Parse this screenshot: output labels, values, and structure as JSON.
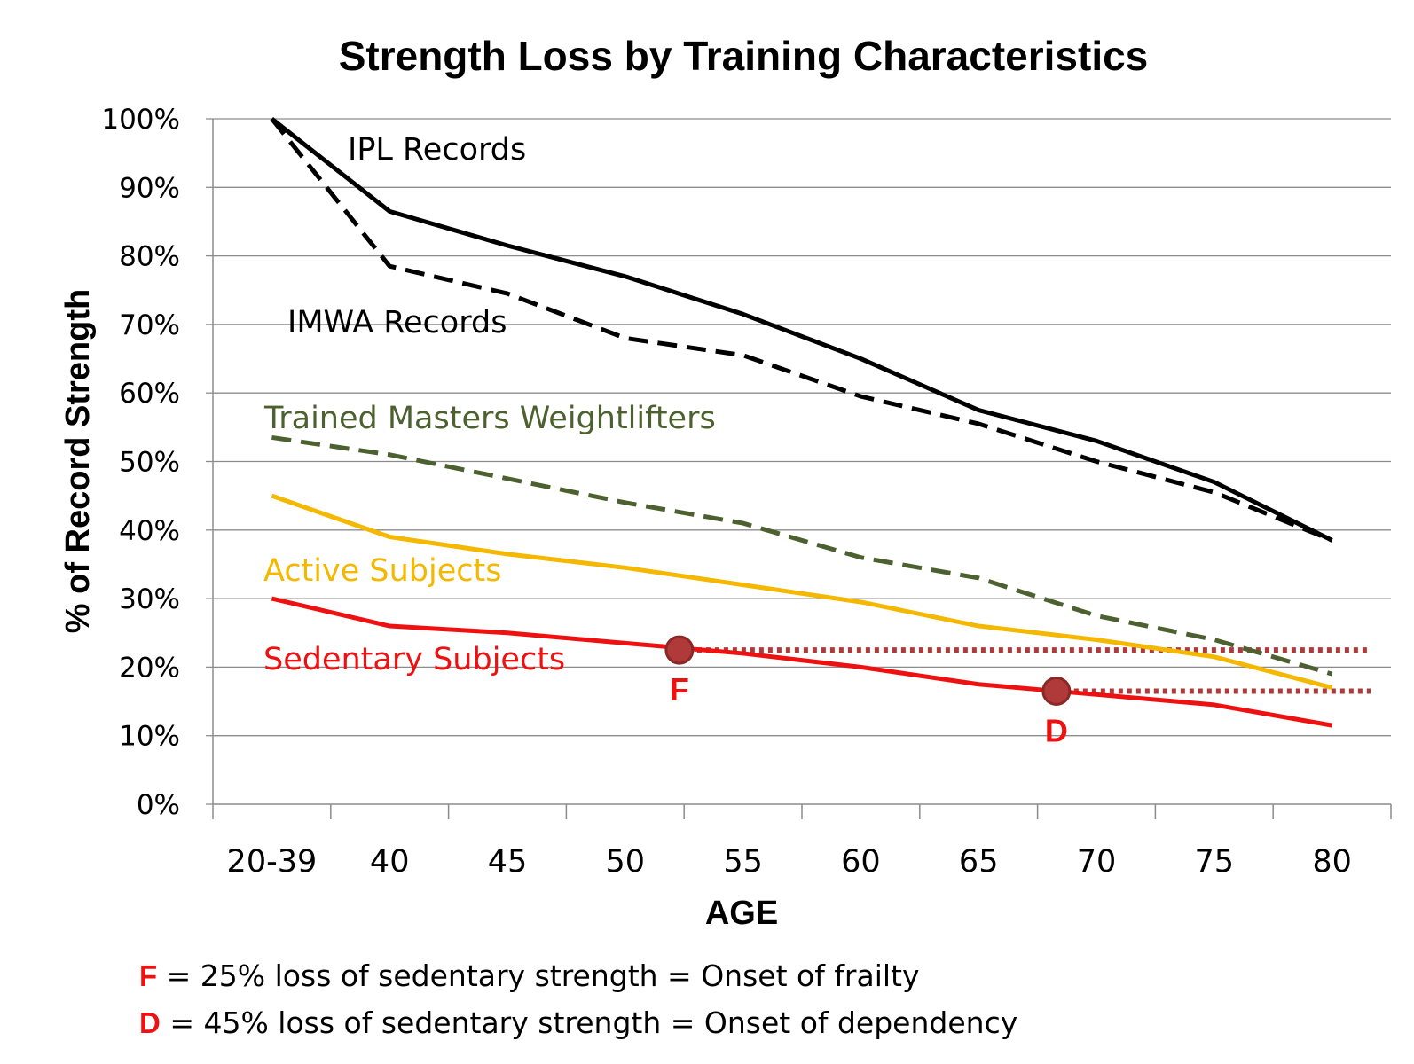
{
  "chart_data": {
    "type": "line",
    "title": "Strength Loss by Training Characteristics",
    "xlabel": "AGE",
    "ylabel": "% of Record Strength",
    "categories": [
      "20-39",
      "40",
      "45",
      "50",
      "55",
      "60",
      "65",
      "70",
      "75",
      "80"
    ],
    "yticks": [
      "0%",
      "10%",
      "20%",
      "30%",
      "40%",
      "50%",
      "60%",
      "70%",
      "80%",
      "90%",
      "100%"
    ],
    "ylim": [
      0,
      100
    ],
    "grid": "horizontal",
    "series": [
      {
        "name": "IPL Records",
        "color": "#000000",
        "dash": false,
        "values": [
          100,
          86.5,
          81.5,
          77,
          71.5,
          65,
          57.5,
          53,
          47,
          38.5
        ]
      },
      {
        "name": "IMWA Records",
        "color": "#000000",
        "dash": true,
        "values": [
          100,
          78.5,
          74.5,
          68,
          65.5,
          59.5,
          55.5,
          50,
          45.5,
          38.5
        ]
      },
      {
        "name": "Trained Masters Weightlifters",
        "color": "#4d6130",
        "dash": true,
        "values": [
          53.5,
          51,
          47.5,
          44,
          41,
          36,
          33,
          27.5,
          24,
          19
        ]
      },
      {
        "name": "Active Subjects",
        "color": "#f5b800",
        "dash": false,
        "values": [
          45,
          39,
          36.5,
          34.5,
          32,
          29.5,
          26,
          24,
          21.5,
          17
        ]
      },
      {
        "name": "Sedentary Subjects",
        "color": "#ee1111",
        "dash": false,
        "values": [
          30,
          26,
          25,
          23.5,
          22,
          20,
          17.5,
          16,
          14.5,
          11.5
        ]
      }
    ],
    "markers": [
      {
        "label": "F",
        "x": 52.3,
        "y": 22.5,
        "color": "#b03a3a"
      },
      {
        "label": "D",
        "x": 68.3,
        "y": 16.5,
        "color": "#b03a3a"
      }
    ]
  },
  "footnotes": [
    {
      "key": "F",
      "text": " = 25% loss of sedentary strength = Onset of frailty"
    },
    {
      "key": "D",
      "text": " = 45% loss of sedentary strength = Onset of dependency"
    }
  ]
}
